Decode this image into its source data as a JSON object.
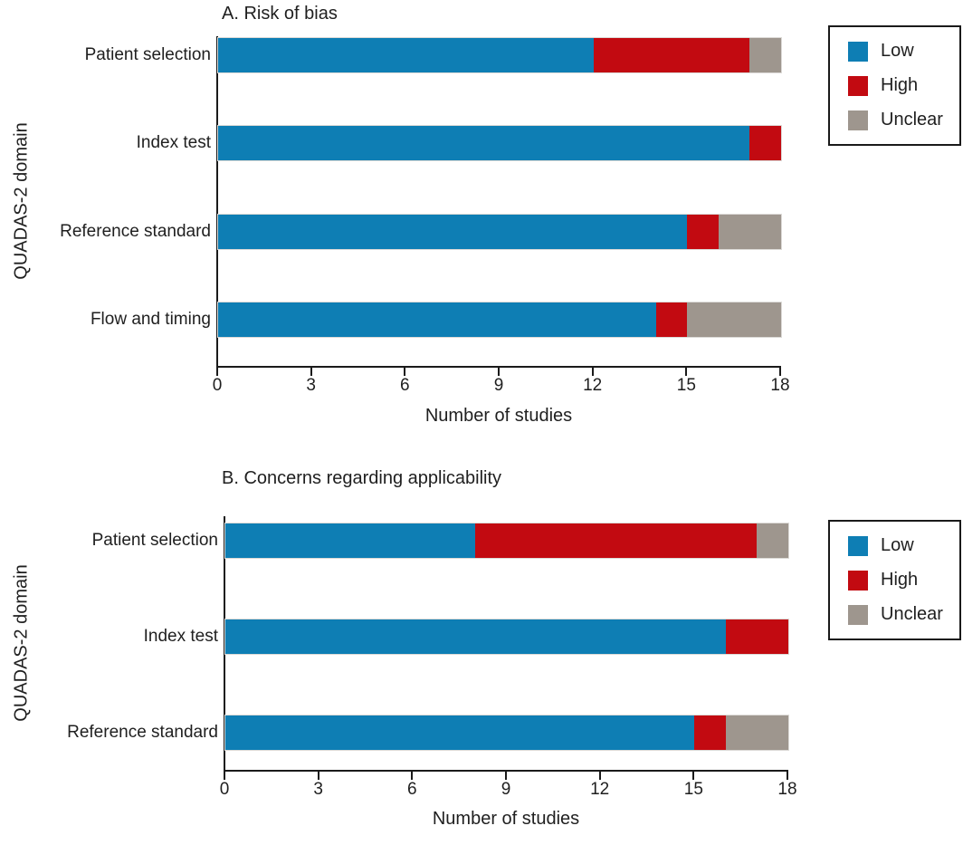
{
  "figure": {
    "background": "#ffffff",
    "text_color": "#1f1f1f"
  },
  "chart_data": [
    {
      "type": "bar",
      "orientation": "horizontal",
      "stacked": true,
      "title": "A. Risk of bias",
      "xlabel": "Number of studies",
      "ylabel": "QUADAS-2 domain",
      "xlim": [
        0,
        18
      ],
      "xticks": [
        0,
        3,
        6,
        9,
        12,
        15,
        18
      ],
      "grid": false,
      "legend_position": "outside-top-right",
      "categories": [
        "Patient selection",
        "Index test",
        "Reference standard",
        "Flow and timing"
      ],
      "series": [
        {
          "name": "Low",
          "color": "#0e7eb4",
          "values": [
            12,
            17,
            15,
            14
          ]
        },
        {
          "name": "High",
          "color": "#c20a11",
          "values": [
            5,
            1,
            1,
            1
          ]
        },
        {
          "name": "Unclear",
          "color": "#9e968e",
          "values": [
            1,
            0,
            2,
            3
          ]
        }
      ]
    },
    {
      "type": "bar",
      "orientation": "horizontal",
      "stacked": true,
      "title": "B. Concerns regarding applicability",
      "xlabel": "Number of studies",
      "ylabel": "QUADAS-2 domain",
      "xlim": [
        0,
        18
      ],
      "xticks": [
        0,
        3,
        6,
        9,
        12,
        15,
        18
      ],
      "grid": false,
      "legend_position": "outside-top-right",
      "categories": [
        "Patient selection",
        "Index test",
        "Reference standard"
      ],
      "series": [
        {
          "name": "Low",
          "color": "#0e7eb4",
          "values": [
            8,
            16,
            15
          ]
        },
        {
          "name": "High",
          "color": "#c20a11",
          "values": [
            9,
            2,
            1
          ]
        },
        {
          "name": "Unclear",
          "color": "#9e968e",
          "values": [
            1,
            0,
            2
          ]
        }
      ]
    }
  ]
}
